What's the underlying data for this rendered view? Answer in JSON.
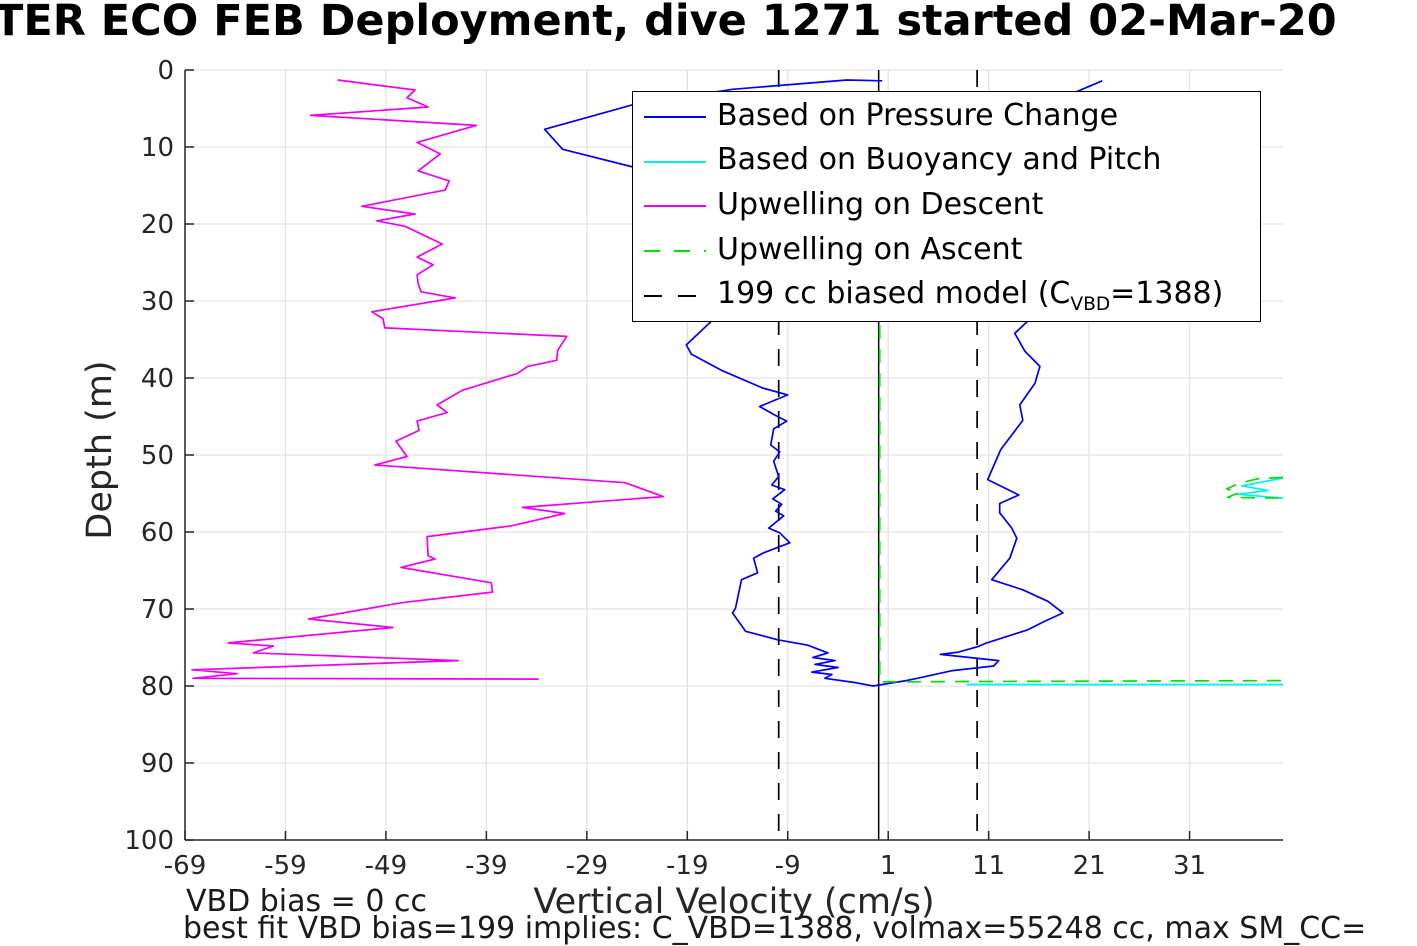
{
  "figure": {
    "background": "#ffffff",
    "grid_color": "#e3e3e3",
    "axis_color": "#262626",
    "tick_label_color": "#262626",
    "tick_font_px": 26
  },
  "title": {
    "text": "TER ECO FEB Deployment, dive 1271 started 02-Mar-20"
  },
  "axes": {
    "xlabel": "Vertical Velocity (cm/s)",
    "ylabel": "Depth (m)"
  },
  "annotations": {
    "vbd_bias": "VBD bias = 0 cc",
    "best_fit": "best fit VBD bias=199 implies: C_VBD=1388, volmax=55248 cc, max SM_CC="
  },
  "legend": {
    "items": [
      {
        "label_pre": "Based on Pressure Change",
        "label_sub": "",
        "label_post": "",
        "color": "#0000f0",
        "dash": "none"
      },
      {
        "label_pre": "Based on Buoyancy and Pitch",
        "label_sub": "",
        "label_post": "",
        "color": "#00f0f0",
        "dash": "none"
      },
      {
        "label_pre": "Upwelling on Descent",
        "label_sub": "",
        "label_post": "",
        "color": "#f000f0",
        "dash": "none"
      },
      {
        "label_pre": "Upwelling on Ascent",
        "label_sub": "",
        "label_post": "",
        "color": "#00e000",
        "dash": "16 14"
      },
      {
        "label_pre": "199 cc biased model (C",
        "label_sub": "VBD",
        "label_post": "=1388)",
        "color": "#000000",
        "dash": "18 16"
      }
    ]
  },
  "chart_data": {
    "type": "line",
    "title": "TER ECO FEB Deployment, dive 1271 started 02-Mar-20",
    "xlabel": "Vertical Velocity (cm/s)",
    "ylabel": "Depth (m)",
    "xlim": [
      -69,
      40.3
    ],
    "ylim": [
      0,
      100
    ],
    "y_inverted": true,
    "grid": true,
    "legend_position": "upper-center-inside",
    "x_ticks": [
      -69,
      -59,
      -49,
      -39,
      -29,
      -19,
      -9,
      1,
      11,
      21,
      31
    ],
    "y_ticks": [
      0,
      10,
      20,
      30,
      40,
      50,
      60,
      70,
      80,
      90,
      100
    ],
    "ref_lines": [
      {
        "x": 0.05,
        "style": "solid",
        "color": "#000000"
      }
    ],
    "series": [
      {
        "name": "Based on Pressure Change",
        "color": "#0000f0",
        "style": "solid",
        "z": 1,
        "segments": [
          [
            [
              0.4,
              1.4
            ],
            [
              -3.1,
              1.3
            ],
            [
              -14.5,
              2.5
            ],
            [
              -24.4,
              4.5
            ],
            [
              -33.2,
              7.7
            ],
            [
              -31.4,
              10.3
            ],
            [
              -24.4,
              12.6
            ],
            [
              -20.5,
              18.0
            ],
            [
              -17.5,
              25.0
            ],
            [
              -16.0,
              30.5
            ],
            [
              -16.5,
              32.5
            ],
            [
              -19.1,
              35.7
            ],
            [
              -18.6,
              36.9
            ],
            [
              -15.6,
              39.0
            ],
            [
              -11.5,
              41.3
            ],
            [
              -9.0,
              42.2
            ],
            [
              -11.8,
              43.7
            ],
            [
              -10.3,
              44.8
            ],
            [
              -9.1,
              45.6
            ],
            [
              -10.4,
              46.6
            ],
            [
              -10.7,
              48.7
            ],
            [
              -9.8,
              49.6
            ],
            [
              -10.4,
              50.8
            ],
            [
              -9.9,
              52.8
            ],
            [
              -10.6,
              53.9
            ],
            [
              -9.3,
              54.5
            ],
            [
              -10.5,
              55.7
            ],
            [
              -9.6,
              56.4
            ],
            [
              -10.2,
              57.3
            ],
            [
              -9.4,
              57.9
            ],
            [
              -10.9,
              59.5
            ],
            [
              -9.8,
              60.1
            ],
            [
              -8.8,
              61.4
            ],
            [
              -11.4,
              62.7
            ],
            [
              -12.4,
              63.4
            ],
            [
              -12.0,
              65.3
            ],
            [
              -13.6,
              66.2
            ],
            [
              -14.2,
              69.9
            ],
            [
              -14.5,
              70.5
            ],
            [
              -13.2,
              72.9
            ],
            [
              -10.0,
              74.0
            ],
            [
              -7.0,
              74.7
            ],
            [
              -5.0,
              75.7
            ],
            [
              -6.5,
              76.3
            ],
            [
              -4.3,
              76.7
            ],
            [
              -6.3,
              77.2
            ],
            [
              -4.0,
              77.6
            ],
            [
              -6.6,
              78.2
            ],
            [
              -4.6,
              78.5
            ],
            [
              -5.3,
              79.0
            ],
            [
              -2.1,
              79.6
            ],
            [
              -0.5,
              80.0
            ],
            [
              2.8,
              79.3
            ],
            [
              3.9,
              79.0
            ],
            [
              7.4,
              78.0
            ],
            [
              11.5,
              77.4
            ],
            [
              12.0,
              76.7
            ],
            [
              6.2,
              75.9
            ],
            [
              8.0,
              75.6
            ],
            [
              9.9,
              74.9
            ],
            [
              10.8,
              74.4
            ],
            [
              14.9,
              72.7
            ],
            [
              16.4,
              71.7
            ],
            [
              18.4,
              70.5
            ],
            [
              16.9,
              69.0
            ],
            [
              14.4,
              67.5
            ],
            [
              11.3,
              66.2
            ],
            [
              13.1,
              63.4
            ],
            [
              13.8,
              60.8
            ],
            [
              13.3,
              59.5
            ],
            [
              12.1,
              57.5
            ],
            [
              12.1,
              56.3
            ],
            [
              14.0,
              55.2
            ],
            [
              10.9,
              53.2
            ],
            [
              12.2,
              49.3
            ],
            [
              14.4,
              45.5
            ],
            [
              14.1,
              43.5
            ],
            [
              15.6,
              40.7
            ],
            [
              16.1,
              38.5
            ],
            [
              14.6,
              36.5
            ],
            [
              13.6,
              34.2
            ],
            [
              16.6,
              30.5
            ],
            [
              17.5,
              25.0
            ],
            [
              18.5,
              15.0
            ],
            [
              19.0,
              8.0
            ],
            [
              19.6,
              2.9
            ],
            [
              22.3,
              1.4
            ]
          ]
        ]
      },
      {
        "name": "Based on Buoyancy and Pitch",
        "color": "#00f0f0",
        "style": "solid",
        "z": 2,
        "segments": [
          [
            [
              40.3,
              53.0
            ],
            [
              36.2,
              54.0
            ],
            [
              38.8,
              54.6
            ],
            [
              35.8,
              55.1
            ],
            [
              40.3,
              55.6
            ]
          ],
          [
            [
              8.8,
              79.8
            ],
            [
              40.3,
              79.8
            ]
          ]
        ]
      },
      {
        "name": "Upwelling on Descent",
        "color": "#f000f0",
        "style": "solid",
        "z": 3,
        "segments": [
          [
            [
              -53.8,
              1.3
            ],
            [
              -46.1,
              2.6
            ],
            [
              -46.9,
              3.6
            ],
            [
              -44.8,
              4.8
            ],
            [
              -56.5,
              5.9
            ],
            [
              -40.0,
              7.2
            ],
            [
              -45.9,
              9.4
            ],
            [
              -43.6,
              10.9
            ],
            [
              -45.8,
              13.1
            ],
            [
              -42.7,
              14.4
            ],
            [
              -43.1,
              15.6
            ],
            [
              -51.4,
              17.7
            ],
            [
              -46.1,
              18.7
            ],
            [
              -49.9,
              19.6
            ],
            [
              -47.1,
              20.3
            ],
            [
              -43.4,
              22.6
            ],
            [
              -45.9,
              24.3
            ],
            [
              -44.3,
              25.3
            ],
            [
              -45.9,
              26.6
            ],
            [
              -45.8,
              27.7
            ],
            [
              -45.5,
              28.8
            ],
            [
              -42.1,
              29.6
            ],
            [
              -50.4,
              31.4
            ],
            [
              -49.3,
              32.3
            ],
            [
              -49.1,
              33.5
            ],
            [
              -31.0,
              34.6
            ],
            [
              -31.9,
              36.4
            ],
            [
              -32.0,
              37.7
            ],
            [
              -34.9,
              38.5
            ],
            [
              -35.9,
              39.4
            ],
            [
              -41.4,
              41.6
            ],
            [
              -43.9,
              43.5
            ],
            [
              -42.9,
              44.5
            ],
            [
              -45.9,
              45.6
            ],
            [
              -45.7,
              46.8
            ],
            [
              -48.0,
              48.2
            ],
            [
              -46.9,
              50.2
            ],
            [
              -50.1,
              51.3
            ],
            [
              -25.2,
              53.6
            ],
            [
              -21.4,
              55.4
            ],
            [
              -35.4,
              56.8
            ],
            [
              -31.2,
              57.6
            ],
            [
              -36.5,
              59.2
            ],
            [
              -44.9,
              60.6
            ],
            [
              -44.8,
              63.1
            ],
            [
              -44.1,
              63.5
            ],
            [
              -47.5,
              64.6
            ],
            [
              -38.5,
              66.6
            ],
            [
              -38.4,
              67.8
            ],
            [
              -47.5,
              69.2
            ],
            [
              -56.7,
              71.3
            ],
            [
              -48.3,
              72.4
            ],
            [
              -64.7,
              74.4
            ],
            [
              -60.2,
              74.8
            ],
            [
              -62.2,
              75.7
            ],
            [
              -41.8,
              76.7
            ],
            [
              -68.3,
              77.9
            ],
            [
              -63.8,
              78.4
            ],
            [
              -68.2,
              79.0
            ],
            [
              -33.8,
              79.1
            ]
          ]
        ]
      },
      {
        "name": "Upwelling on Ascent",
        "color": "#00e000",
        "style": "dashed",
        "z": 4,
        "segments": [
          [
            [
              40.3,
              52.9
            ],
            [
              37.7,
              53.1
            ],
            [
              35.9,
              53.7
            ],
            [
              34.7,
              54.4
            ],
            [
              35.9,
              54.9
            ],
            [
              34.8,
              55.5
            ],
            [
              40.3,
              55.6
            ]
          ],
          [
            [
              0.15,
              30.0
            ],
            [
              0.15,
              79.45
            ],
            [
              40.3,
              79.3
            ]
          ]
        ]
      },
      {
        "name": "199 cc biased model (C_VBD=1388)",
        "color": "#000000",
        "style": "dashed",
        "z": 0,
        "segments": [
          [
            [
              -9.9,
              0
            ],
            [
              -9.9,
              100
            ]
          ],
          [
            [
              9.85,
              0
            ],
            [
              9.85,
              100
            ]
          ]
        ]
      }
    ]
  }
}
